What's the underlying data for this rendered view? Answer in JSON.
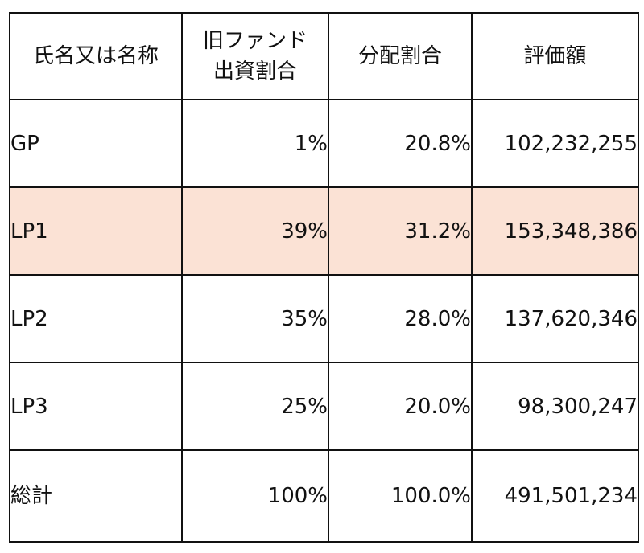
{
  "table": {
    "headers": [
      {
        "lines": [
          "氏名又は名称"
        ]
      },
      {
        "lines": [
          "旧ファンド",
          "出資割合"
        ]
      },
      {
        "lines": [
          "分配割合"
        ]
      },
      {
        "lines": [
          "評価額"
        ]
      }
    ],
    "rows": [
      {
        "name": "GP",
        "old_fund_share": "1%",
        "distribution_ratio": "20.8%",
        "valuation": "102,232,255",
        "highlighted": false
      },
      {
        "name": "LP1",
        "old_fund_share": "39%",
        "distribution_ratio": "31.2%",
        "valuation": "153,348,386",
        "highlighted": true
      },
      {
        "name": "LP2",
        "old_fund_share": "35%",
        "distribution_ratio": "28.0%",
        "valuation": "137,620,346",
        "highlighted": false
      },
      {
        "name": "LP3",
        "old_fund_share": "25%",
        "distribution_ratio": "20.0%",
        "valuation": "98,300,247",
        "highlighted": false
      }
    ],
    "total": {
      "name": "総計",
      "old_fund_share": "100%",
      "distribution_ratio": "100.0%",
      "valuation": "491,501,234"
    }
  },
  "colors": {
    "highlight_row": "#fbe2d5",
    "border": "#111111",
    "background": "#ffffff"
  }
}
